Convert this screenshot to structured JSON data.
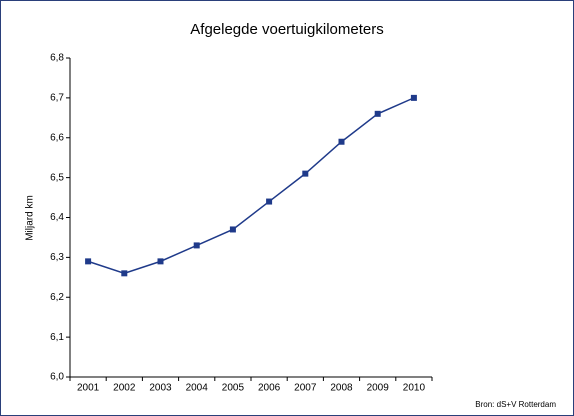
{
  "chart_data": {
    "type": "line",
    "title": "Afgelegde voertuigkilometers",
    "y_label": "Miljard km",
    "source": "Bron: dS+V Rotterdam",
    "categories": [
      "2001",
      "2002",
      "2003",
      "2004",
      "2005",
      "2006",
      "2007",
      "2008",
      "2009",
      "2010"
    ],
    "series": [
      {
        "name": "Afgelegde voertuigkilometers",
        "color": "#1f3a8a",
        "values": [
          6.29,
          6.26,
          6.29,
          6.33,
          6.37,
          6.44,
          6.51,
          6.59,
          6.66,
          6.7
        ]
      }
    ],
    "ylim": [
      6.0,
      6.8
    ],
    "yticks": [
      {
        "value": 6.0,
        "label": "6,0"
      },
      {
        "value": 6.1,
        "label": "6,1"
      },
      {
        "value": 6.2,
        "label": "6,2"
      },
      {
        "value": 6.3,
        "label": "6,3"
      },
      {
        "value": 6.4,
        "label": "6,4"
      },
      {
        "value": 6.5,
        "label": "6,5"
      },
      {
        "value": 6.6,
        "label": "6,6"
      },
      {
        "value": 6.7,
        "label": "6,7"
      },
      {
        "value": 6.8,
        "label": "6,8"
      }
    ],
    "grid": false,
    "legend": false
  }
}
